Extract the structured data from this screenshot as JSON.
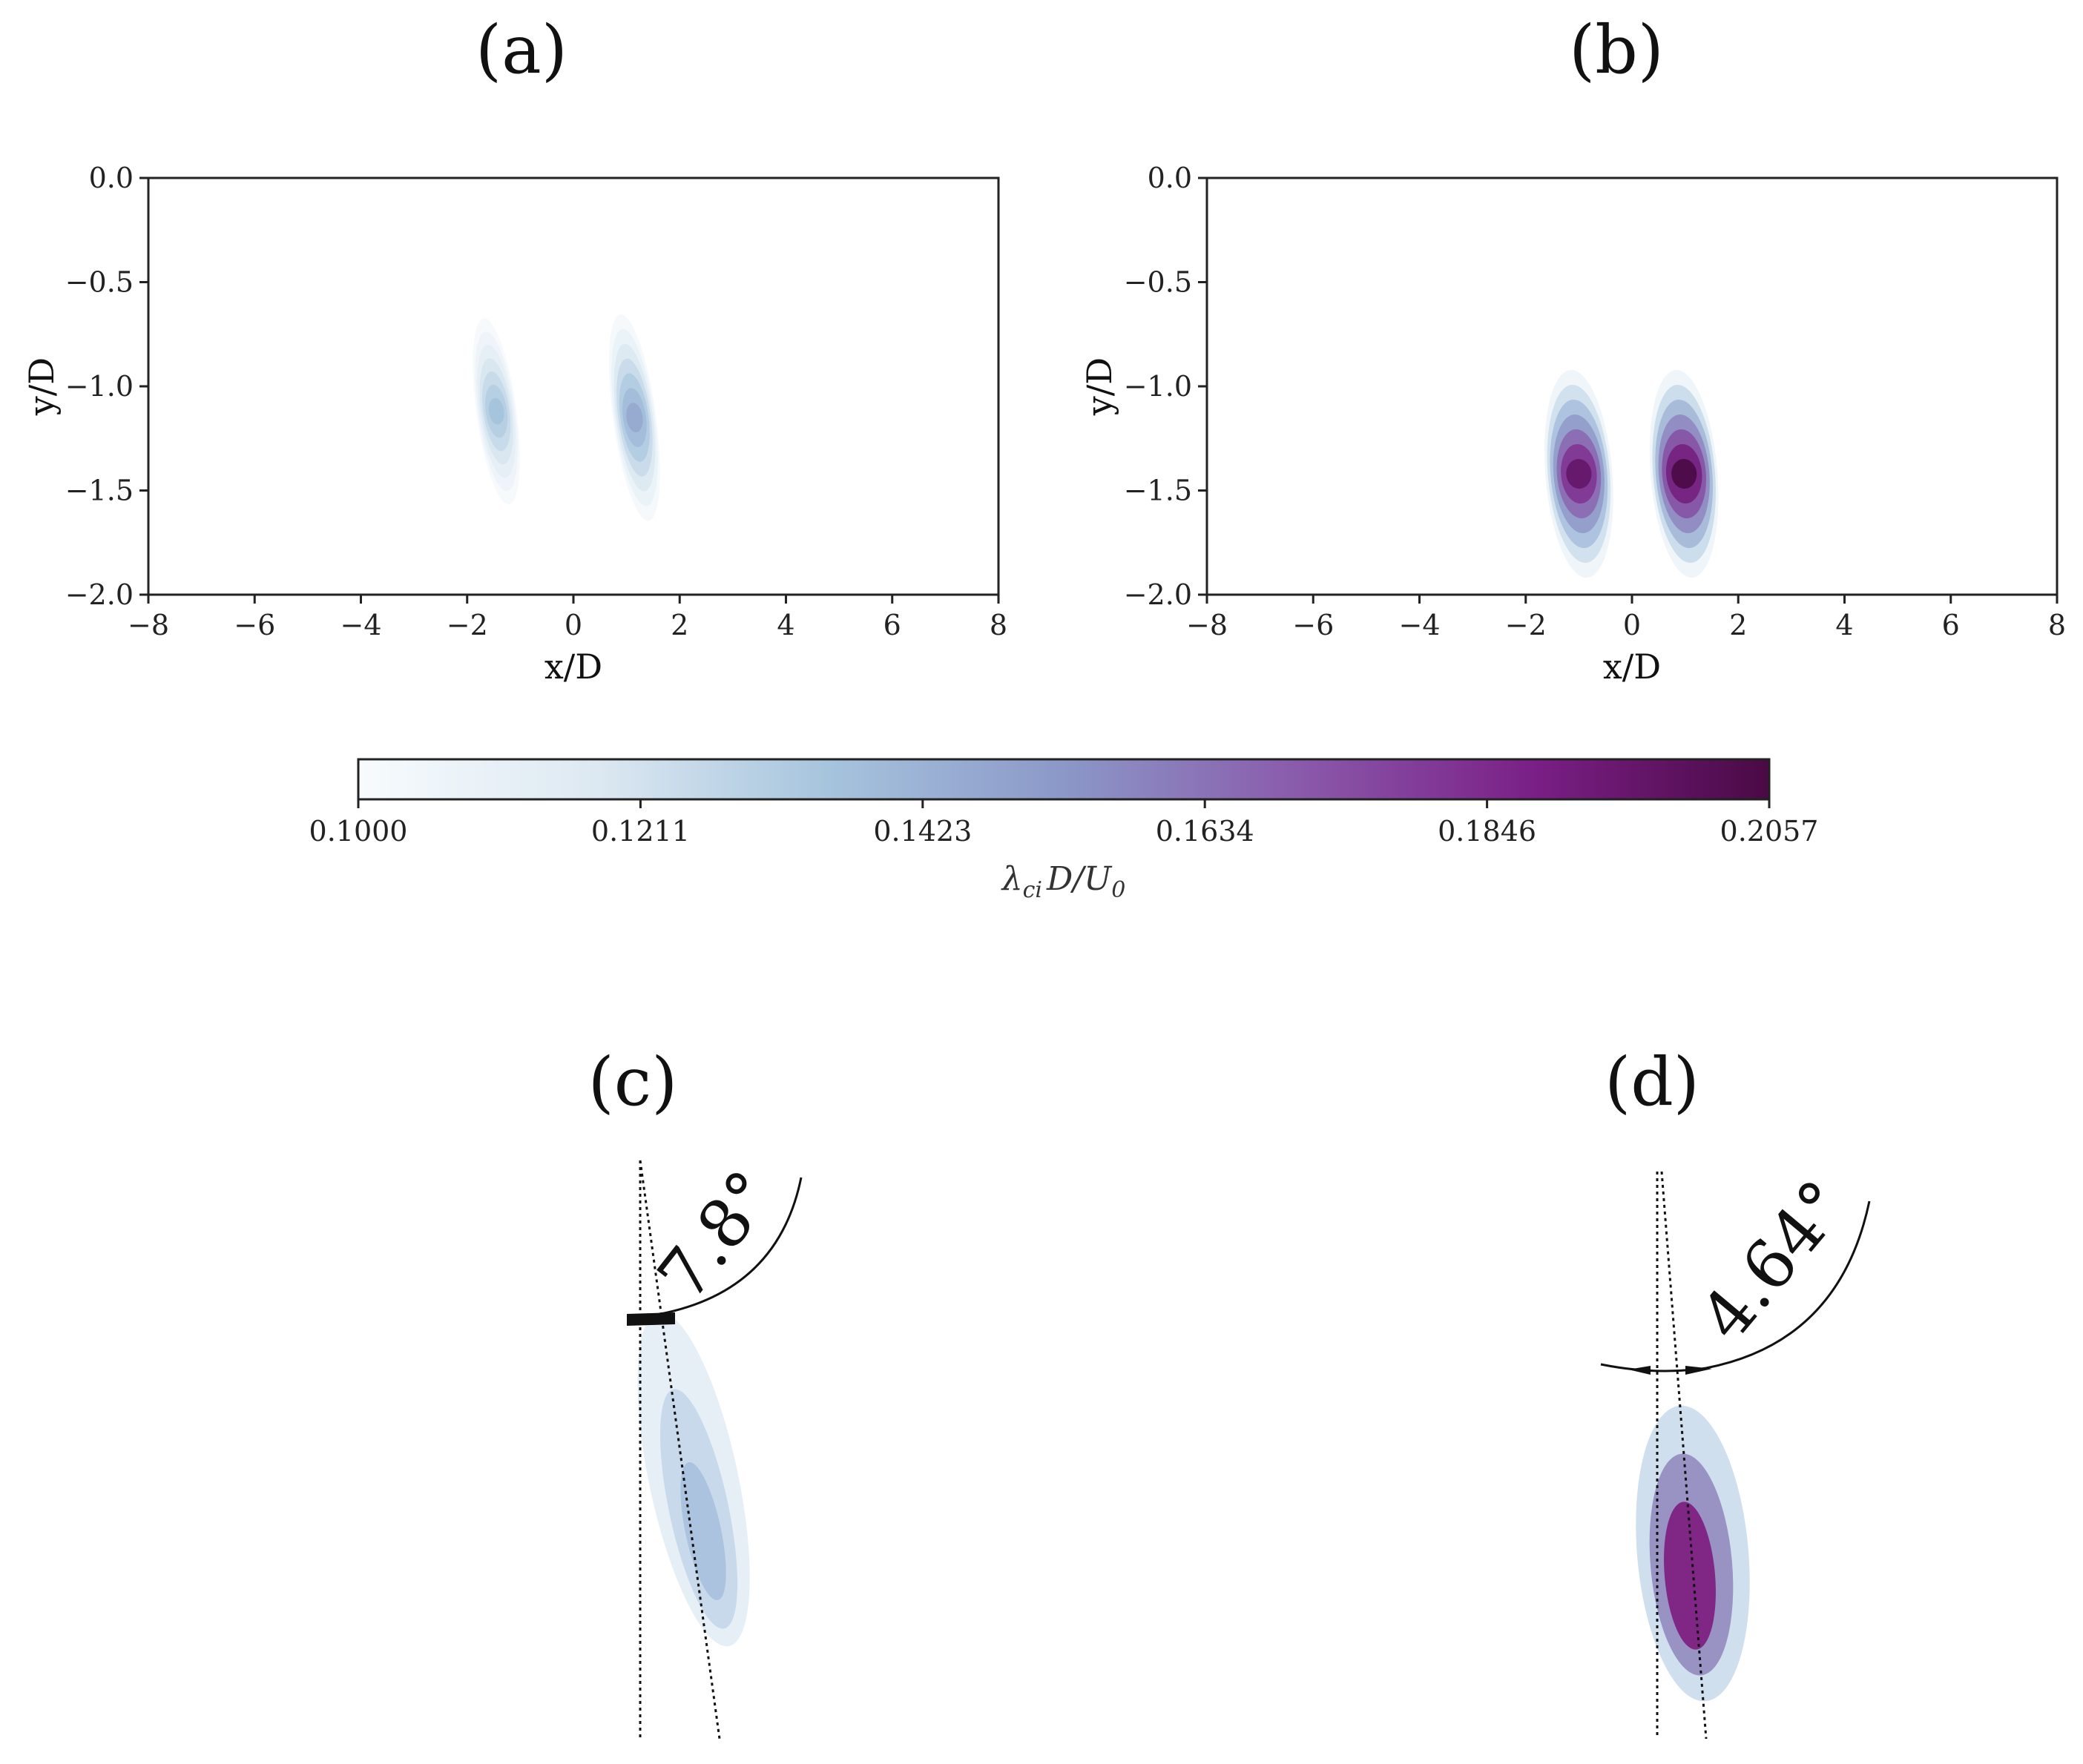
{
  "figure": {
    "panel_labels": [
      "(a)",
      "(b)",
      "(c)",
      "(d)"
    ]
  },
  "chart_data": [
    {
      "type": "heatmap",
      "panel": "(a)",
      "xlabel": "x/D",
      "ylabel": "y/D",
      "xlim": [
        -8,
        8
      ],
      "ylim": [
        -2.0,
        0.0
      ],
      "xticks": [
        -8,
        -6,
        -4,
        -2,
        0,
        2,
        4,
        6,
        8
      ],
      "xtick_labels": [
        "−8",
        "−6",
        "−4",
        "−2",
        "0",
        "2",
        "4",
        "6",
        "8"
      ],
      "yticks": [
        0.0,
        -0.5,
        -1.0,
        -1.5,
        -2.0
      ],
      "ytick_labels": [
        "0.0",
        "−0.5",
        "−1.0",
        "−1.5",
        "−2.0"
      ],
      "vortices": [
        {
          "name": "left-vortex",
          "x": -1.45,
          "y": -1.12,
          "half_width": 0.42,
          "half_height": 0.45,
          "tilt_deg": -7.8,
          "peak": 0.136
        },
        {
          "name": "right-vortex",
          "x": 1.15,
          "y": -1.15,
          "half_width": 0.45,
          "half_height": 0.5,
          "tilt_deg": -7.8,
          "peak": 0.146
        }
      ]
    },
    {
      "type": "heatmap",
      "panel": "(b)",
      "xlabel": "x/D",
      "ylabel": "y/D",
      "xlim": [
        -8,
        8
      ],
      "ylim": [
        -2.0,
        0.0
      ],
      "xticks": [
        -8,
        -6,
        -4,
        -2,
        0,
        2,
        4,
        6,
        8
      ],
      "xtick_labels": [
        "−8",
        "−6",
        "−4",
        "−2",
        "0",
        "2",
        "4",
        "6",
        "8"
      ],
      "yticks": [
        0.0,
        -0.5,
        -1.0,
        -1.5,
        -2.0
      ],
      "ytick_labels": [
        "0.0",
        "−0.5",
        "−1.0",
        "−1.5",
        "−2.0"
      ],
      "vortices": [
        {
          "name": "left-vortex",
          "x": -1.0,
          "y": -1.42,
          "half_width": 0.7,
          "half_height": 0.5,
          "tilt_deg": -4.64,
          "peak": 0.196
        },
        {
          "name": "right-vortex",
          "x": 0.98,
          "y": -1.42,
          "half_width": 0.7,
          "half_height": 0.5,
          "tilt_deg": -4.64,
          "peak": 0.2057
        }
      ]
    },
    {
      "type": "colorbar",
      "label": "λ",
      "label_sub": "ci",
      "label_rest": "D/U",
      "label_sub2": "0",
      "range": [
        0.1,
        0.2057
      ],
      "ticks": [
        "0.1000",
        "0.1211",
        "0.1423",
        "0.1634",
        "0.1846",
        "0.2057"
      ],
      "colormap": [
        "#f7fbfd",
        "#dde9f2",
        "#a6c4dd",
        "#8b98c8",
        "#8a5aab",
        "#7a1f86",
        "#4a0a45"
      ]
    },
    {
      "type": "annotation",
      "panel": "(c)",
      "angle_label": "7.8°",
      "angle_deg": 7.8
    },
    {
      "type": "annotation",
      "panel": "(d)",
      "angle_label": "4.64°",
      "angle_deg": 4.64
    }
  ]
}
